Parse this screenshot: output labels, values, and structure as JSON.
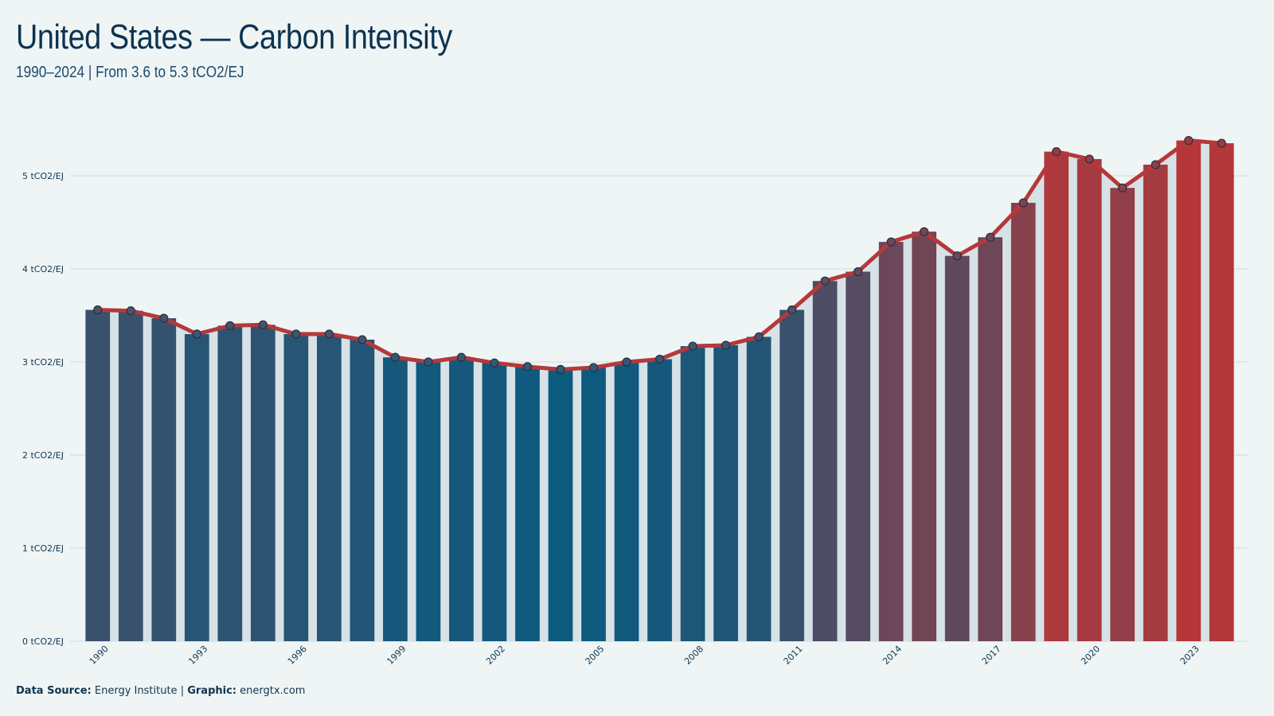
{
  "title": "United States — Carbon Intensity",
  "subtitle": "1990–2024 | From 3.6 to 5.3 tCO2/EJ",
  "footer": {
    "source_label": "Data Source:",
    "source_value": "Energy Institute",
    "separator": "|",
    "graphic_label": "Graphic:",
    "graphic_value": "energtx.com"
  },
  "colors": {
    "background": "#eff5f5",
    "grid": "#d6dfe2",
    "area_fill": "#d6e2e6",
    "line": "#b5383b",
    "low": "#0d5a7f",
    "high": "#b5373a",
    "text": "#0f3550"
  },
  "chart_data": {
    "type": "bar",
    "x": [
      1990,
      1991,
      1992,
      1993,
      1994,
      1995,
      1996,
      1997,
      1998,
      1999,
      2000,
      2001,
      2002,
      2003,
      2004,
      2005,
      2006,
      2007,
      2008,
      2009,
      2010,
      2011,
      2012,
      2013,
      2014,
      2015,
      2016,
      2017,
      2018,
      2019,
      2020,
      2021,
      2022,
      2023,
      2024
    ],
    "values": [
      3.56,
      3.55,
      3.47,
      3.3,
      3.39,
      3.4,
      3.3,
      3.3,
      3.24,
      3.05,
      3.0,
      3.05,
      2.99,
      2.95,
      2.92,
      2.94,
      3.0,
      3.03,
      3.17,
      3.18,
      3.27,
      3.56,
      3.87,
      3.97,
      4.29,
      4.4,
      4.14,
      4.34,
      4.71,
      5.26,
      5.18,
      4.87,
      5.12,
      5.38,
      5.35
    ],
    "overlay": "line-with-markers",
    "xticks": [
      "1990",
      "1993",
      "1996",
      "1999",
      "2002",
      "2005",
      "2008",
      "2011",
      "2014",
      "2017",
      "2020",
      "2023"
    ],
    "yticks": [
      "0 tCO2/EJ",
      "1 tCO2/EJ",
      "2 tCO2/EJ",
      "3 tCO2/EJ",
      "4 tCO2/EJ",
      "5 tCO2/EJ"
    ],
    "ylim": [
      0,
      5.5
    ],
    "grid": true,
    "legend": "none"
  }
}
